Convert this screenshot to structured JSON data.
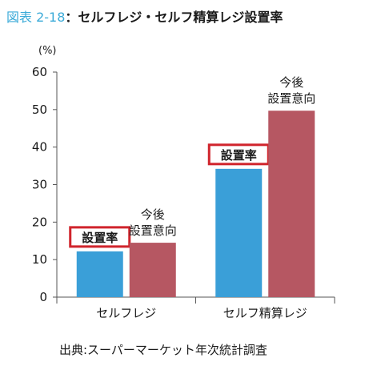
{
  "figure": {
    "number": "図表 2-18",
    "separator": "：",
    "title": "セルフレジ・セルフ精算レジ設置率"
  },
  "source": "出典:スーパーマーケット年次統計調査",
  "colors": {
    "series_setchi": "#3a9fd8",
    "series_ikou": "#b65762",
    "highlight_box": "#d0242c",
    "title_number": "#3aaad8"
  },
  "chart_data": {
    "type": "bar",
    "ylabel": "(%)",
    "ylim": [
      0,
      60
    ],
    "yticks": [
      0,
      10,
      20,
      30,
      40,
      50,
      60
    ],
    "grid": false,
    "categories": [
      "セルフレジ",
      "セルフ精算レジ"
    ],
    "series": [
      {
        "name": "設置率",
        "values": [
          12.2,
          34.2
        ],
        "highlighted": true
      },
      {
        "name": "今後設置意向",
        "label_lines": [
          "今後",
          "設置意向"
        ],
        "values": [
          14.5,
          49.7
        ]
      }
    ]
  }
}
